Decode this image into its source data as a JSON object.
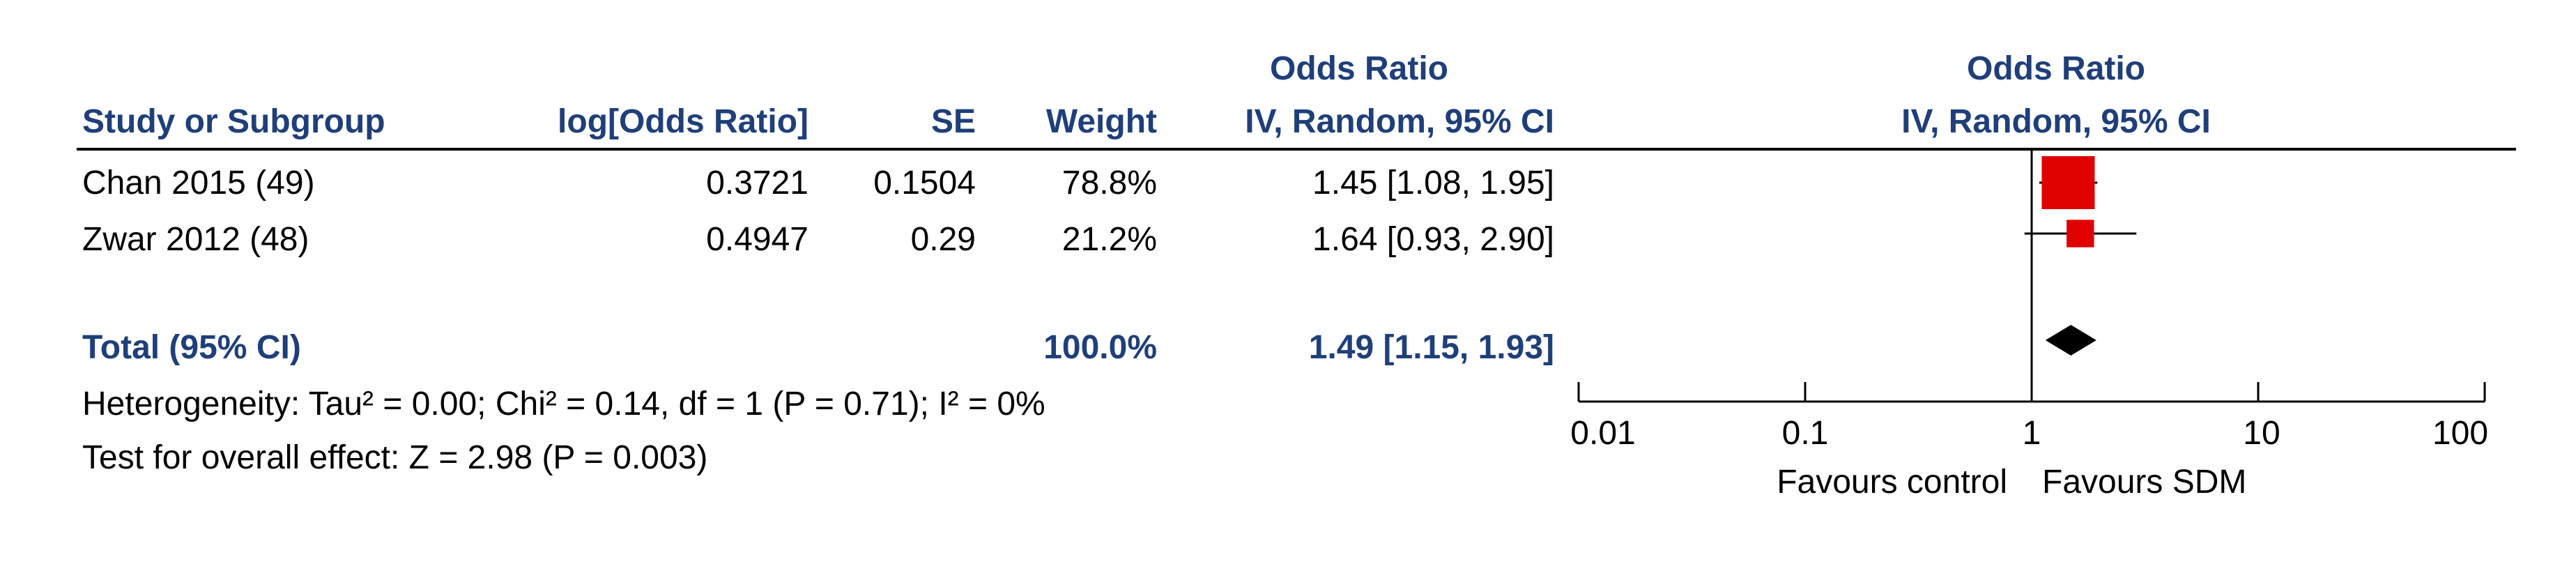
{
  "header": {
    "study_col": "Study or Subgroup",
    "logor_col": "log[Odds Ratio]",
    "se_col": "SE",
    "weight_col": "Weight",
    "or_col_top": "Odds Ratio",
    "or_col_bottom": "IV, Random, 95% CI",
    "plot_col_top": "Odds Ratio",
    "plot_col_bottom": "IV, Random, 95% CI"
  },
  "rows": [
    {
      "study": "Chan 2015 (49)",
      "log_or": "0.3721",
      "se": "0.1504",
      "weight": "78.8%",
      "or_ci": "1.45 [1.08, 1.95]"
    },
    {
      "study": "Zwar 2012 (48)",
      "log_or": "0.4947",
      "se": "0.29",
      "weight": "21.2%",
      "or_ci": "1.64 [0.93, 2.90]"
    }
  ],
  "total": {
    "label": "Total (95% CI)",
    "weight": "100.0%",
    "or_ci": "1.49 [1.15, 1.93]"
  },
  "notes": {
    "heterogeneity": "Heterogeneity: Tau² = 0.00; Chi² = 0.14, df = 1 (P = 0.71); I² = 0%",
    "overall": "Test for overall effect: Z = 2.98 (P = 0.003)"
  },
  "axis": {
    "ticks": [
      "0.01",
      "0.1",
      "1",
      "10",
      "100"
    ],
    "favours_left": "Favours control",
    "favours_right": "Favours SDM"
  },
  "chart_data": {
    "type": "forest",
    "scale": "log",
    "xlim": [
      0.01,
      100
    ],
    "x_ticks": [
      0.01,
      0.1,
      1,
      10,
      100
    ],
    "reference_line": 1,
    "studies": [
      {
        "name": "Chan 2015 (49)",
        "or": 1.45,
        "ci_low": 1.08,
        "ci_high": 1.95,
        "weight": 78.8
      },
      {
        "name": "Zwar 2012 (48)",
        "or": 1.64,
        "ci_low": 0.93,
        "ci_high": 2.9,
        "weight": 21.2
      }
    ],
    "pooled": {
      "or": 1.49,
      "ci_low": 1.15,
      "ci_high": 1.93
    },
    "colors": {
      "study_marker": "#e00000",
      "pooled_marker": "#000000",
      "header_text": "#1f3f7a"
    }
  }
}
